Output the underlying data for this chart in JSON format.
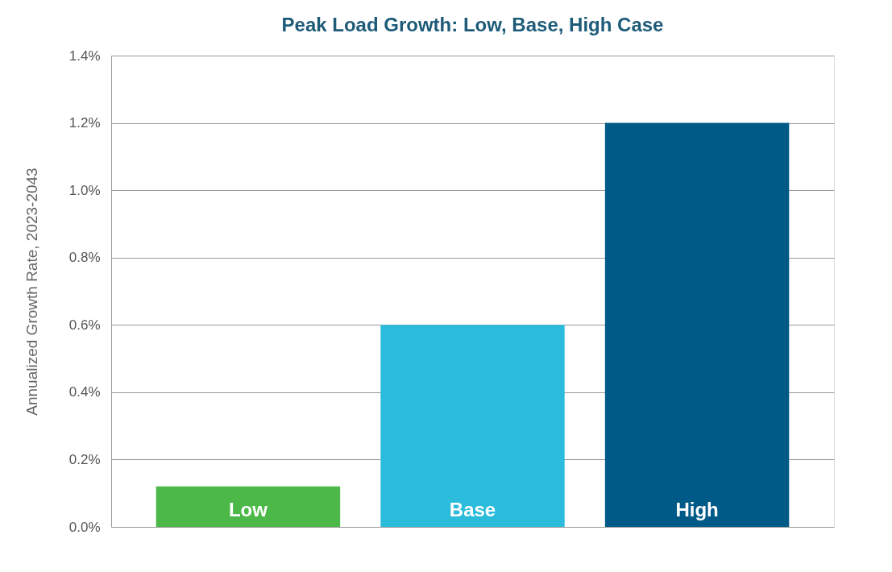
{
  "chart_data": {
    "type": "bar",
    "title": "Peak Load Growth: Low, Base, High Case",
    "ylabel": "Annualized Growth Rate, 2023-2043",
    "categories": [
      "Low",
      "Base",
      "High"
    ],
    "values": [
      0.12,
      0.6,
      1.2
    ],
    "colors": [
      "#4cb848",
      "#2bbcdc",
      "#005a87"
    ],
    "ylim": [
      0,
      1.4
    ],
    "yticks": [
      {
        "value": 0,
        "label": "0.0%"
      },
      {
        "value": 0.2,
        "label": "0.2%"
      },
      {
        "value": 0.4,
        "label": "0.4%"
      },
      {
        "value": 0.6,
        "label": "0.6%"
      },
      {
        "value": 0.8,
        "label": "0.8%"
      },
      {
        "value": 1.0,
        "label": "1.0%"
      },
      {
        "value": 1.2,
        "label": "1.2%"
      },
      {
        "value": 1.4,
        "label": "1.4%"
      }
    ],
    "grid": "y"
  }
}
